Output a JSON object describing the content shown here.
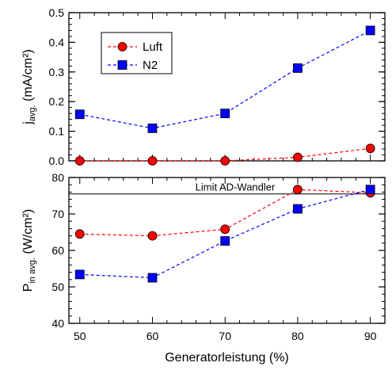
{
  "chart_data": [
    {
      "type": "line",
      "ylabel": "j_avg. (mA/cm²)",
      "ylim": [
        0,
        0.5
      ],
      "yticks": [
        0.0,
        0.1,
        0.2,
        0.3,
        0.4,
        0.5
      ],
      "ytick_labels": [
        "0.0",
        "0.1",
        "0.2",
        "0.3",
        "0.4",
        "0.5"
      ],
      "x": [
        50,
        60,
        70,
        80,
        90
      ],
      "xlim": [
        48.5,
        92
      ],
      "legend": {
        "placement": "top-left",
        "entries": [
          "Luft",
          "N2"
        ]
      },
      "series": [
        {
          "name": "Luft",
          "values": [
            0.0,
            0.0,
            0.0,
            0.012,
            0.042
          ],
          "color": "#ff0000",
          "marker": "circle"
        },
        {
          "name": "N2",
          "values": [
            0.157,
            0.11,
            0.16,
            0.313,
            0.44
          ],
          "color": "#0000ff",
          "marker": "square"
        }
      ]
    },
    {
      "type": "line",
      "ylabel": "P_in avg. (W/cm²)",
      "xlabel": "Generatorleistung (%)",
      "ylim": [
        40,
        80
      ],
      "yticks": [
        40,
        50,
        60,
        70,
        80
      ],
      "ytick_labels": [
        "40",
        "50",
        "60",
        "70",
        "80"
      ],
      "x": [
        50,
        60,
        70,
        80,
        90
      ],
      "xticks": [
        50,
        60,
        70,
        80,
        90
      ],
      "xtick_labels": [
        "50",
        "60",
        "70",
        "80",
        "90"
      ],
      "xlim": [
        48.5,
        92
      ],
      "reference_line": {
        "value": 75.5,
        "label": "Limit AD-Wandler"
      },
      "series": [
        {
          "name": "Luft",
          "values": [
            64.5,
            64.0,
            65.8,
            76.7,
            75.8
          ],
          "color": "#ff0000",
          "marker": "circle"
        },
        {
          "name": "N2",
          "values": [
            53.4,
            52.5,
            62.6,
            71.4,
            76.7
          ],
          "color": "#0000ff",
          "marker": "square"
        }
      ]
    }
  ]
}
